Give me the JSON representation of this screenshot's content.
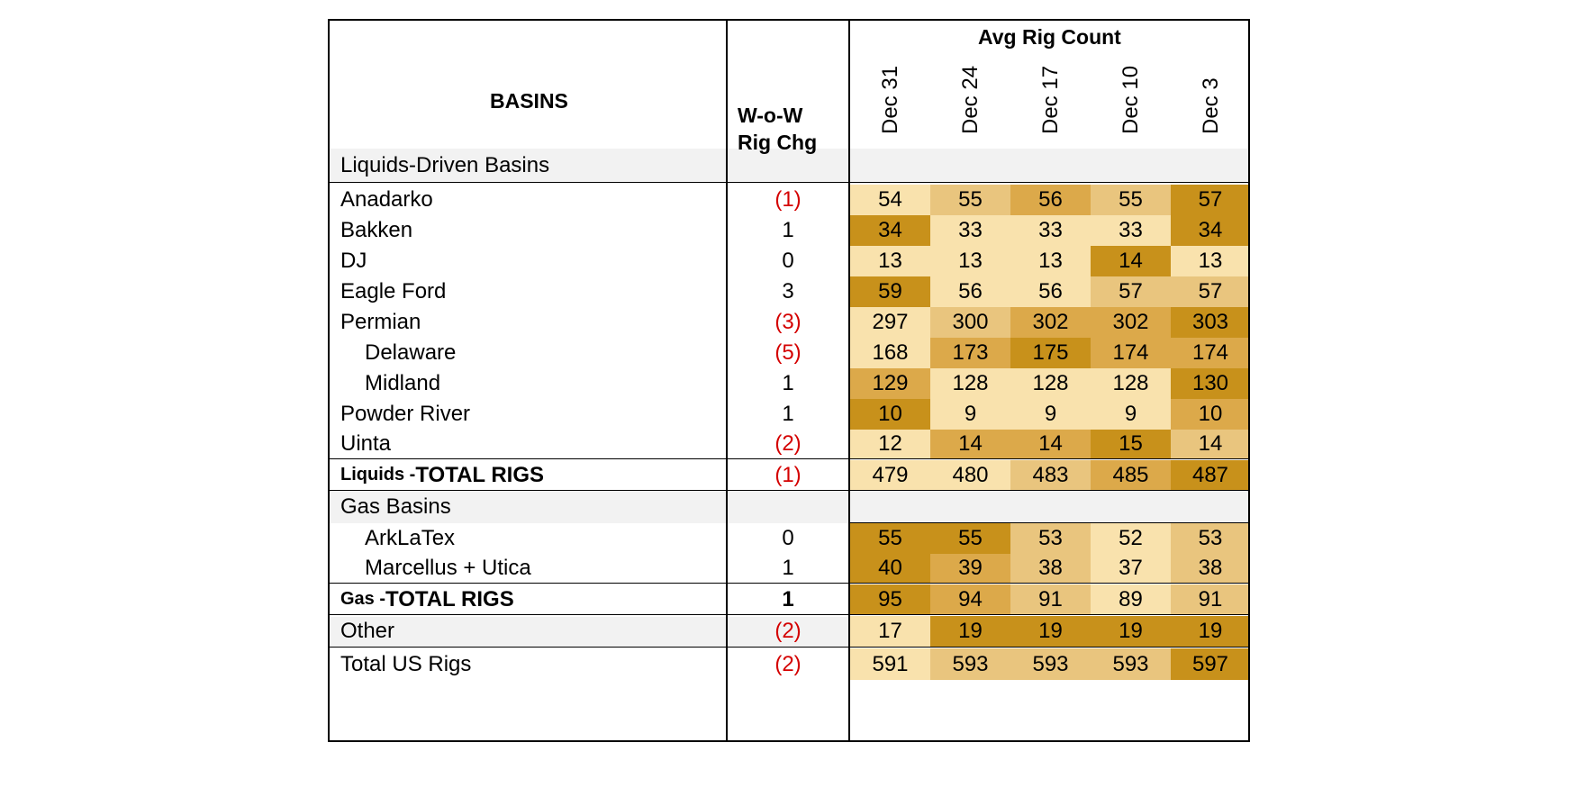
{
  "header": {
    "basins": "BASINS",
    "change_line1": "W-o-W",
    "change_line2": "Rig Chg",
    "avg": "Avg Rig Count",
    "dates": [
      "Dec 31",
      "Dec 24",
      "Dec 17",
      "Dec 10",
      "Dec 3"
    ]
  },
  "sections": {
    "liquids": "Liquids-Driven Basins",
    "gas": "Gas Basins"
  },
  "colors": {
    "scale": [
      "#f9e2ad",
      "#e9c57e",
      "#dca94a",
      "#c8911b"
    ],
    "negative": "#d40000",
    "section_band": "#f2f2f2"
  },
  "rows": [
    {
      "prefix": "",
      "name": "Anadarko",
      "change": "(1)",
      "negative": true,
      "values": [
        "54",
        "55",
        "56",
        "55",
        "57"
      ],
      "levels": [
        0,
        1,
        2,
        1,
        3
      ]
    },
    {
      "prefix": "",
      "name": "Bakken",
      "change": "1",
      "negative": false,
      "values": [
        "34",
        "33",
        "33",
        "33",
        "34"
      ],
      "levels": [
        3,
        0,
        0,
        0,
        3
      ]
    },
    {
      "prefix": "",
      "name": "DJ",
      "change": "0",
      "negative": false,
      "values": [
        "13",
        "13",
        "13",
        "14",
        "13"
      ],
      "levels": [
        0,
        0,
        0,
        3,
        0
      ]
    },
    {
      "prefix": "",
      "name": "Eagle Ford",
      "change": "3",
      "negative": false,
      "values": [
        "59",
        "56",
        "56",
        "57",
        "57"
      ],
      "levels": [
        3,
        0,
        0,
        1,
        1
      ]
    },
    {
      "prefix": "",
      "name": "Permian",
      "change": "(3)",
      "negative": true,
      "values": [
        "297",
        "300",
        "302",
        "302",
        "303"
      ],
      "levels": [
        0,
        1,
        2,
        2,
        3
      ]
    },
    {
      "prefix": "",
      "name": "Delaware",
      "change": "(5)",
      "negative": true,
      "values": [
        "168",
        "173",
        "175",
        "174",
        "174"
      ],
      "levels": [
        0,
        2,
        3,
        2,
        2
      ]
    },
    {
      "prefix": "",
      "name": "Midland",
      "change": "1",
      "negative": false,
      "values": [
        "129",
        "128",
        "128",
        "128",
        "130"
      ],
      "levels": [
        2,
        0,
        0,
        0,
        3
      ]
    },
    {
      "prefix": "",
      "name": "Powder River",
      "change": "1",
      "negative": false,
      "values": [
        "10",
        "9",
        "9",
        "9",
        "10"
      ],
      "levels": [
        3,
        0,
        0,
        0,
        2
      ]
    },
    {
      "prefix": "",
      "name": "Uinta",
      "change": "(2)",
      "negative": true,
      "values": [
        "12",
        "14",
        "14",
        "15",
        "14"
      ],
      "levels": [
        0,
        2,
        2,
        3,
        1
      ]
    },
    {
      "prefix": "Liquids - ",
      "name": "TOTAL RIGS",
      "change": "(1)",
      "negative": true,
      "values": [
        "479",
        "480",
        "483",
        "485",
        "487"
      ],
      "levels": [
        0,
        0,
        1,
        2,
        3
      ]
    },
    {
      "prefix": "",
      "name": "ArkLaTex",
      "change": "0",
      "negative": false,
      "values": [
        "55",
        "55",
        "53",
        "52",
        "53"
      ],
      "levels": [
        3,
        3,
        1,
        0,
        1
      ]
    },
    {
      "prefix": "",
      "name": "Marcellus + Utica",
      "change": "1",
      "negative": false,
      "values": [
        "40",
        "39",
        "38",
        "37",
        "38"
      ],
      "levels": [
        3,
        2,
        1,
        0,
        1
      ]
    },
    {
      "prefix": "Gas - ",
      "name": "TOTAL RIGS",
      "change": "1",
      "negative": false,
      "values": [
        "95",
        "94",
        "91",
        "89",
        "91"
      ],
      "levels": [
        3,
        2,
        1,
        0,
        1
      ]
    },
    {
      "prefix": "",
      "name": "Other",
      "change": "(2)",
      "negative": true,
      "values": [
        "17",
        "19",
        "19",
        "19",
        "19"
      ],
      "levels": [
        0,
        3,
        3,
        3,
        3
      ]
    },
    {
      "prefix": "",
      "name": "Total US Rigs",
      "change": "(2)",
      "negative": true,
      "values": [
        "591",
        "593",
        "593",
        "593",
        "597"
      ],
      "levels": [
        0,
        1,
        1,
        1,
        3
      ]
    }
  ],
  "chart_data": {
    "type": "table",
    "title": "Avg Rig Count",
    "columns": [
      "BASINS",
      "W-o-W Rig Chg",
      "Dec 31",
      "Dec 24",
      "Dec 17",
      "Dec 10",
      "Dec 3"
    ],
    "sections": [
      "Liquids-Driven Basins",
      "Gas Basins"
    ],
    "rows": [
      [
        "Anadarko",
        "(1)",
        54,
        55,
        56,
        55,
        57
      ],
      [
        "Bakken",
        "1",
        34,
        33,
        33,
        33,
        34
      ],
      [
        "DJ",
        "0",
        13,
        13,
        13,
        14,
        13
      ],
      [
        "Eagle Ford",
        "3",
        59,
        56,
        56,
        57,
        57
      ],
      [
        "Permian",
        "(3)",
        297,
        300,
        302,
        302,
        303
      ],
      [
        "Delaware",
        "(5)",
        168,
        173,
        175,
        174,
        174
      ],
      [
        "Midland",
        "1",
        129,
        128,
        128,
        128,
        130
      ],
      [
        "Powder River",
        "1",
        10,
        9,
        9,
        9,
        10
      ],
      [
        "Uinta",
        "(2)",
        12,
        14,
        14,
        15,
        14
      ],
      [
        "Liquids - TOTAL RIGS",
        "(1)",
        479,
        480,
        483,
        485,
        487
      ],
      [
        "ArkLaTex",
        "0",
        55,
        55,
        53,
        52,
        53
      ],
      [
        "Marcellus + Utica",
        "1",
        40,
        39,
        38,
        37,
        38
      ],
      [
        "Gas - TOTAL RIGS",
        "1",
        95,
        94,
        91,
        89,
        91
      ],
      [
        "Other",
        "(2)",
        17,
        19,
        19,
        19,
        19
      ],
      [
        "Total US Rigs",
        "(2)",
        591,
        593,
        593,
        593,
        597
      ]
    ]
  }
}
